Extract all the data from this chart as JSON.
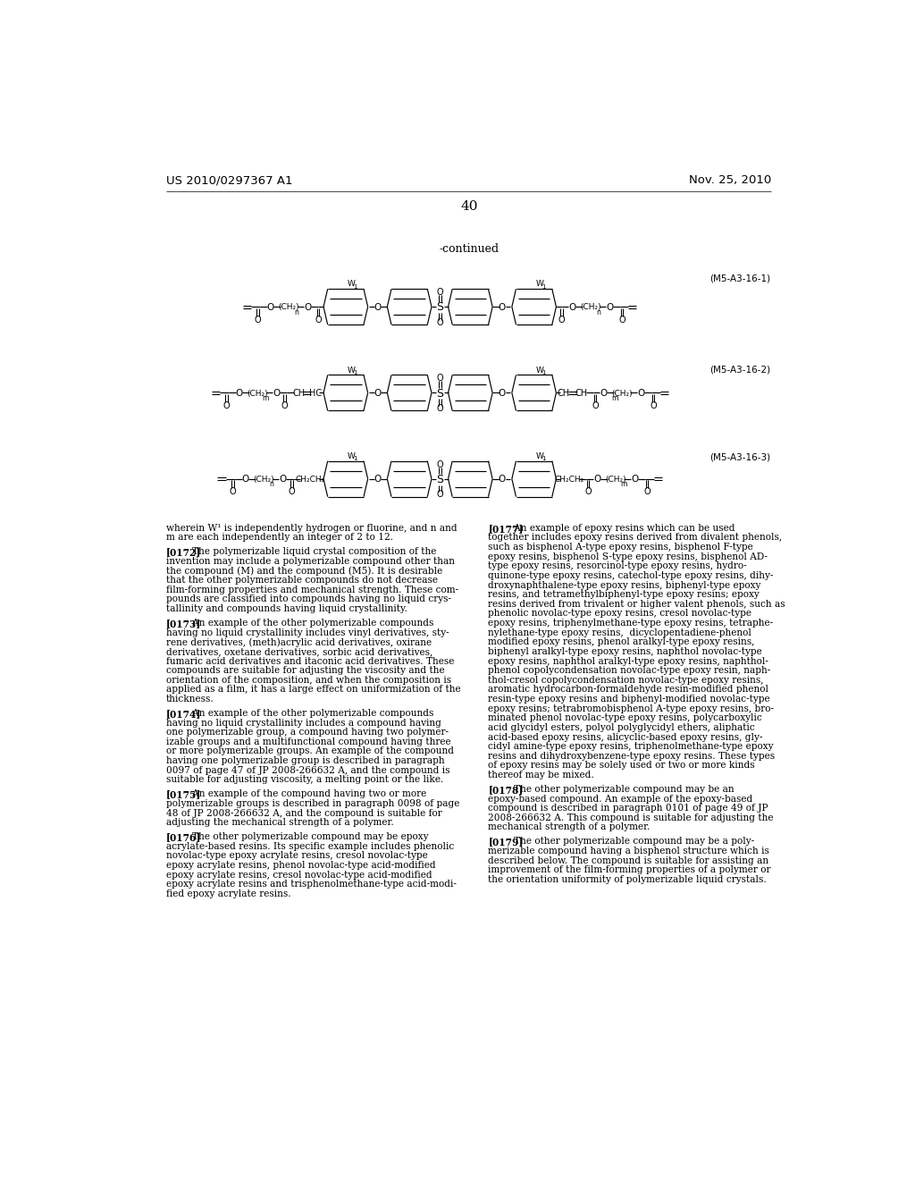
{
  "bg_color": "#ffffff",
  "header_left": "US 2010/0297367 A1",
  "header_right": "Nov. 25, 2010",
  "page_number": "40",
  "continued_label": "-continued",
  "compound_labels": [
    "(M5-A3-16-1)",
    "(M5-A3-16-2)",
    "(M5-A3-16-3)"
  ],
  "body_text_left": [
    "wherein W¹ is independently hydrogen or fluorine, and n and",
    "m are each independently an integer of 2 to 12.",
    "",
    "[0172]   The polymerizable liquid crystal composition of the",
    "invention may include a polymerizable compound other than",
    "the compound (M) and the compound (M5). It is desirable",
    "that the other polymerizable compounds do not decrease",
    "film-forming properties and mechanical strength. These com-",
    "pounds are classified into compounds having no liquid crys-",
    "tallinity and compounds having liquid crystallinity.",
    "",
    "[0173]   An example of the other polymerizable compounds",
    "having no liquid crystallinity includes vinyl derivatives, sty-",
    "rene derivatives, (meth)acrylic acid derivatives, oxirane",
    "derivatives, oxetane derivatives, sorbic acid derivatives,",
    "fumaric acid derivatives and itaconic acid derivatives. These",
    "compounds are suitable for adjusting the viscosity and the",
    "orientation of the composition, and when the composition is",
    "applied as a film, it has a large effect on uniformization of the",
    "thickness.",
    "",
    "[0174]   An example of the other polymerizable compounds",
    "having no liquid crystallinity includes a compound having",
    "one polymerizable group, a compound having two polymer-",
    "izable groups and a multifunctional compound having three",
    "or more polymerizable groups. An example of the compound",
    "having one polymerizable group is described in paragraph",
    "0097 of page 47 of JP 2008-266632 A, and the compound is",
    "suitable for adjusting viscosity, a melting point or the like.",
    "",
    "[0175]   An example of the compound having two or more",
    "polymerizable groups is described in paragraph 0098 of page",
    "48 of JP 2008-266632 A, and the compound is suitable for",
    "adjusting the mechanical strength of a polymer.",
    "",
    "[0176]   The other polymerizable compound may be epoxy",
    "acrylate-based resins. Its specific example includes phenolic",
    "novolac-type epoxy acrylate resins, cresol novolac-type",
    "epoxy acrylate resins, phenol novolac-type acid-modified",
    "epoxy acrylate resins, cresol novolac-type acid-modified",
    "epoxy acrylate resins and trisphenolmethane-type acid-modi-",
    "fied epoxy acrylate resins."
  ],
  "body_text_right": [
    "[0177]   An example of epoxy resins which can be used",
    "together includes epoxy resins derived from divalent phenols,",
    "such as bisphenol A-type epoxy resins, bisphenol F-type",
    "epoxy resins, bisphenol S-type epoxy resins, bisphenol AD-",
    "type epoxy resins, resorcinol-type epoxy resins, hydro-",
    "quinone-type epoxy resins, catechol-type epoxy resins, dihy-",
    "droxynaphthalene-type epoxy resins, biphenyl-type epoxy",
    "resins, and tetramethylbiphenyl-type epoxy resins; epoxy",
    "resins derived from trivalent or higher valent phenols, such as",
    "phenolic novolac-type epoxy resins, cresol novolac-type",
    "epoxy resins, triphenylmethane-type epoxy resins, tetraphe-",
    "nylethane-type epoxy resins,  dicyclopentadiene-phenol",
    "modified epoxy resins, phenol aralkyl-type epoxy resins,",
    "biphenyl aralkyl-type epoxy resins, naphthol novolac-type",
    "epoxy resins, naphthol aralkyl-type epoxy resins, naphthol-",
    "phenol copolycondensation novolac-type epoxy resin, naph-",
    "thol-cresol copolycondensation novolac-type epoxy resins,",
    "aromatic hydrocarbon-formaldehyde resin-modified phenol",
    "resin-type epoxy resins and biphenyl-modified novolac-type",
    "epoxy resins; tetrabromobisphenol A-type epoxy resins, bro-",
    "minated phenol novolac-type epoxy resins, polycarboxylic",
    "acid glycidyl esters, polyol polyglycidyl ethers, aliphatic",
    "acid-based epoxy resins, alicyclic-based epoxy resins, gly-",
    "cidyl amine-type epoxy resins, triphenolmethane-type epoxy",
    "resins and dihydroxybenzene-type epoxy resins. These types",
    "of epoxy resins may be solely used or two or more kinds",
    "thereof may be mixed.",
    "",
    "[0178]   The other polymerizable compound may be an",
    "epoxy-based compound. An example of the epoxy-based",
    "compound is described in paragraph 0101 of page 49 of JP",
    "2008-266632 A. This compound is suitable for adjusting the",
    "mechanical strength of a polymer.",
    "",
    "[0179]   The other polymerizable compound may be a poly-",
    "merizable compound having a bisphenol structure which is",
    "described below. The compound is suitable for assisting an",
    "improvement of the film-forming properties of a polymer or",
    "the orientation uniformity of polymerizable liquid crystals."
  ]
}
